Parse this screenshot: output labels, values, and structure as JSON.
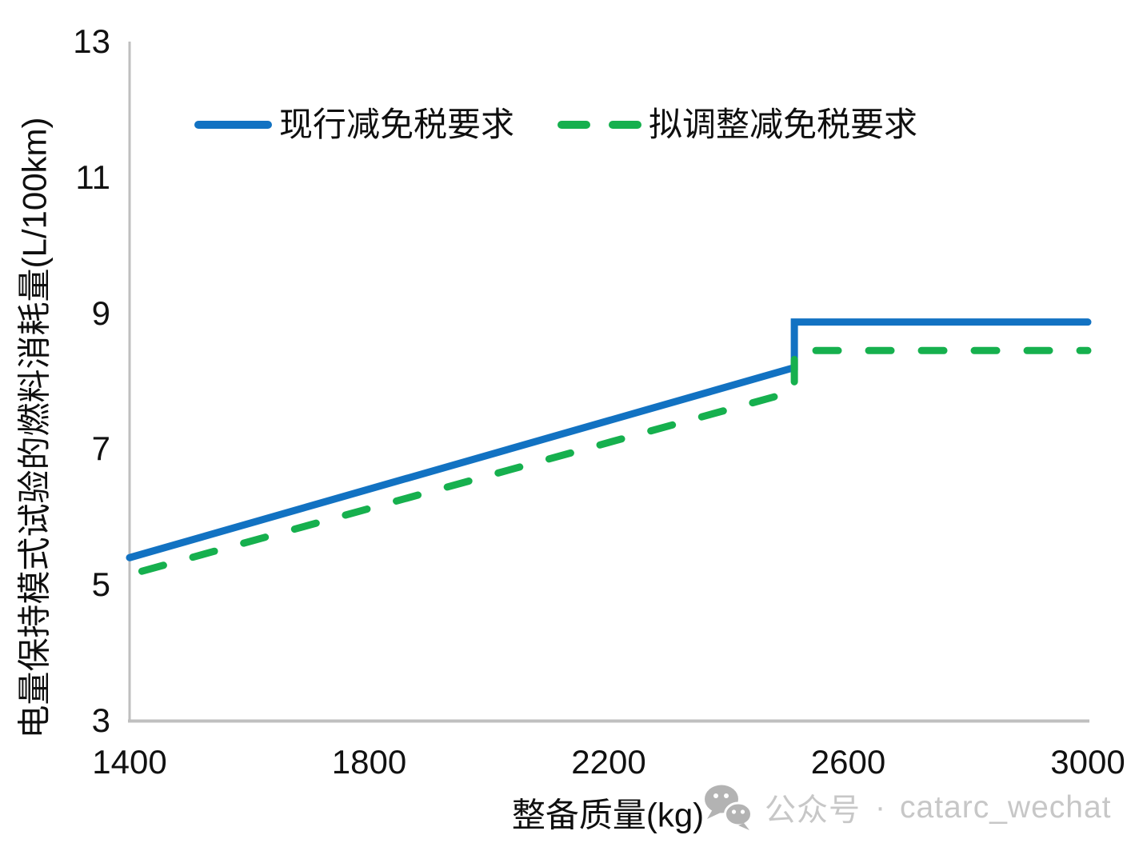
{
  "chart_data": {
    "type": "line",
    "title": "",
    "xlabel": "整备质量(kg)",
    "ylabel": "电量保持模式试验的燃料消耗量(L/100km)",
    "xlim": [
      1400,
      3000
    ],
    "ylim": [
      3,
      13
    ],
    "xticks": [
      1400,
      1800,
      2200,
      2600,
      3000
    ],
    "yticks": [
      3,
      5,
      7,
      9,
      11,
      13
    ],
    "grid": false,
    "legend_position": "top-center",
    "series": [
      {
        "name": "现行减免税要求",
        "color": "#1272c2",
        "style": "solid",
        "points": [
          [
            1400,
            5.4
          ],
          [
            2510,
            8.2
          ],
          [
            2510,
            8.87
          ],
          [
            3000,
            8.87
          ]
        ]
      },
      {
        "name": "拟调整减免税要求",
        "color": "#16b04e",
        "style": "dashed",
        "points": [
          [
            1400,
            5.15
          ],
          [
            2510,
            7.85
          ],
          [
            2510,
            8.45
          ],
          [
            3000,
            8.45
          ]
        ]
      }
    ]
  },
  "axis": {
    "line_color": "#bfbfbf",
    "tick_label_color": "#111111"
  },
  "watermark": {
    "icon": "wechat-icon",
    "icon_color": "#b3b3b3",
    "text": "公众号",
    "separator": "·",
    "account": "catarc_wechat",
    "text_color": "#c7c7c7"
  }
}
